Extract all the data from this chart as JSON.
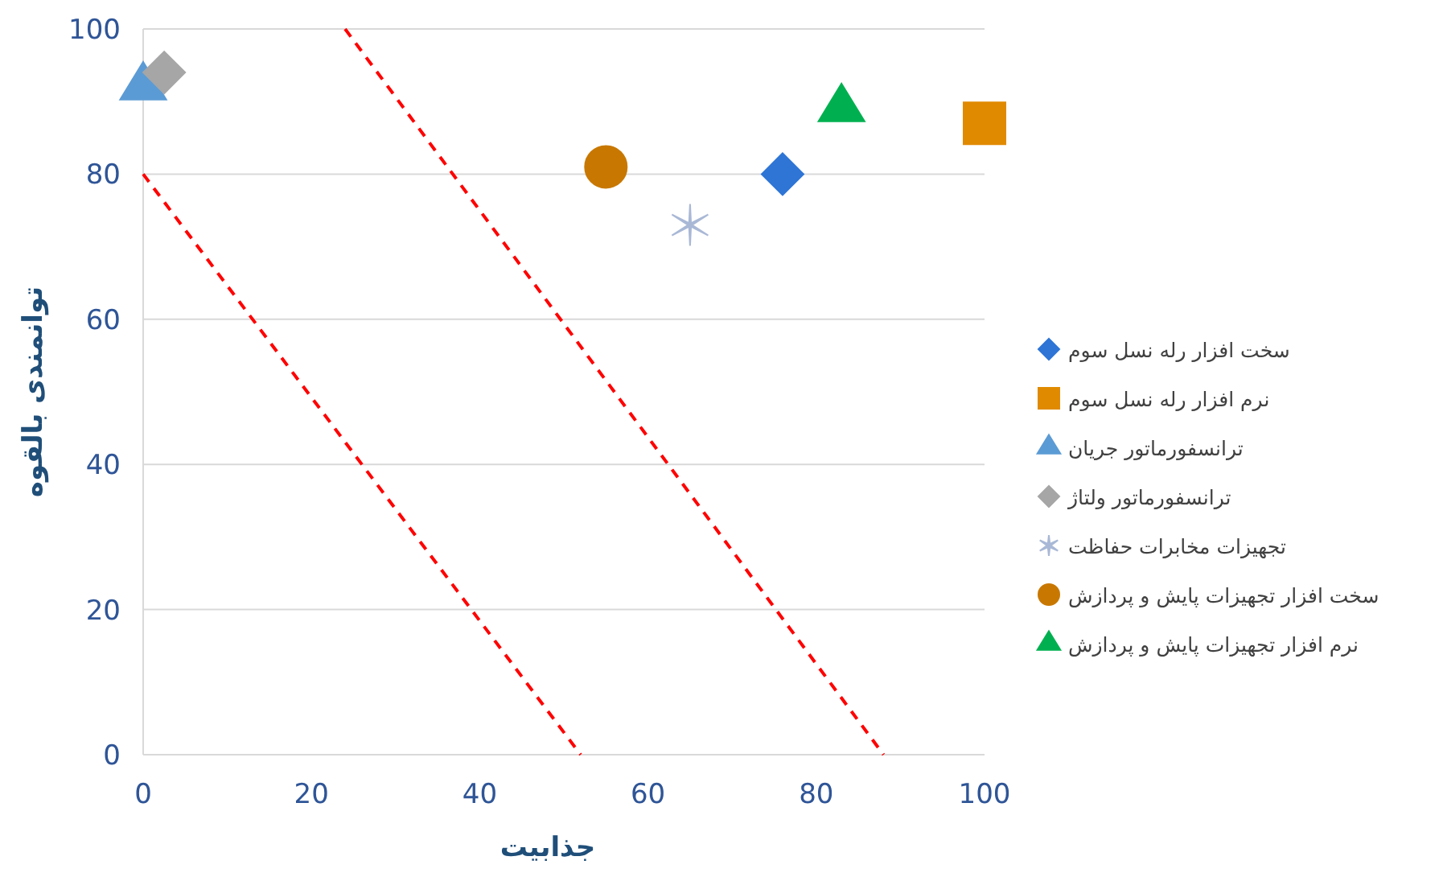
{
  "chart_data": {
    "type": "scatter",
    "xlabel": "جذابیت",
    "ylabel": "توانمندی بالقوه",
    "xlim": [
      0,
      100
    ],
    "ylim": [
      0,
      100
    ],
    "xticks": [
      0,
      20,
      40,
      60,
      80,
      100
    ],
    "yticks": [
      0,
      20,
      40,
      60,
      80,
      100
    ],
    "grid": "y",
    "legend": "right",
    "series": [
      {
        "name": "سخت افزار رله نسل سوم",
        "color": "#2e75d6",
        "marker": "diamond",
        "x": [
          76
        ],
        "values": [
          80
        ]
      },
      {
        "name": "نرم افزار رله نسل سوم",
        "color": "#e08a00",
        "marker": "square",
        "x": [
          100
        ],
        "values": [
          87
        ]
      },
      {
        "name": "ترانسفورماتور جریان",
        "color": "#5b9bd5",
        "marker": "triangle",
        "x": [
          0
        ],
        "values": [
          92
        ]
      },
      {
        "name": "ترانسفورماتور ولتاژ",
        "color": "#a6a6a6",
        "marker": "diamond",
        "x": [
          2.5
        ],
        "values": [
          94
        ]
      },
      {
        "name": "تجهیزات مخابرات حفاظت",
        "color": "#a9b8d6",
        "marker": "cross",
        "x": [
          65
        ],
        "values": [
          73
        ]
      },
      {
        "name": "سخت افزار تجهیزات پایش و پردازش",
        "color": "#c87800",
        "marker": "circle",
        "x": [
          55
        ],
        "values": [
          81
        ]
      },
      {
        "name": "نرم افزار تجهیزات پایش و پردازش",
        "color": "#00b050",
        "marker": "triangle",
        "x": [
          83
        ],
        "values": [
          89
        ]
      },
      {
        "type": "line",
        "color": "#ff0000",
        "line_style": "dashed",
        "x": [
          0,
          52
        ],
        "values": [
          80,
          0
        ]
      },
      {
        "type": "line",
        "color": "#ff0000",
        "line_style": "dashed",
        "x": [
          24,
          88
        ],
        "values": [
          100,
          0
        ]
      }
    ]
  }
}
